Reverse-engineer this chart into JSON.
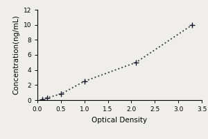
{
  "x": [
    0.1,
    0.2,
    0.5,
    1.0,
    2.1,
    3.3
  ],
  "y": [
    0.1,
    0.3,
    0.8,
    2.5,
    5.0,
    10.0
  ],
  "xlabel": "Optical Density",
  "ylabel": "Concentration(ng/mL)",
  "xlim": [
    0,
    3.5
  ],
  "ylim": [
    0,
    12
  ],
  "xticks": [
    0,
    0.5,
    1.0,
    1.5,
    2.0,
    2.5,
    3.0,
    3.5
  ],
  "yticks": [
    0,
    2,
    4,
    6,
    8,
    10,
    12
  ],
  "marker": "+",
  "marker_color": "#1a1a2e",
  "line_color": "#444444",
  "line_style": "dotted",
  "marker_size": 7,
  "line_width": 1.4,
  "bg_color": "#f0eeea",
  "label_fontsize": 7.5,
  "tick_fontsize": 6.5
}
